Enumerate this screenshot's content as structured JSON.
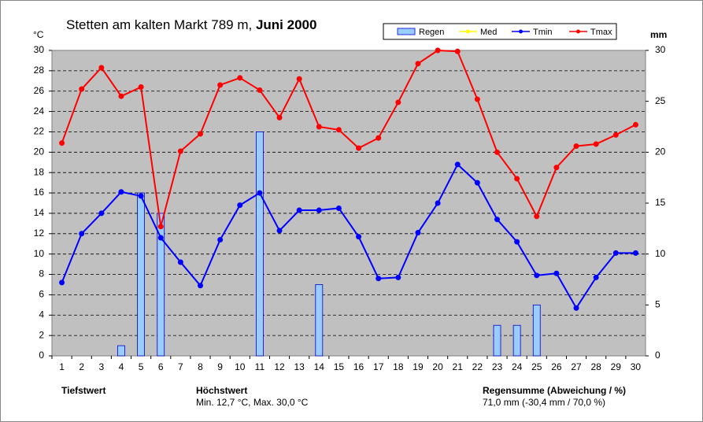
{
  "chart_data": {
    "type": "line",
    "title": "Stetten am kalten Markt  789 m, ",
    "title_emphasis": "Juni 2000",
    "y_label": "°C",
    "y2_label": "mm",
    "categories": [
      "1",
      "2",
      "3",
      "4",
      "5",
      "6",
      "7",
      "8",
      "9",
      "10",
      "11",
      "12",
      "13",
      "14",
      "15",
      "16",
      "17",
      "18",
      "19",
      "20",
      "21",
      "22",
      "23",
      "24",
      "25",
      "26",
      "27",
      "28",
      "29",
      "30"
    ],
    "ylim": [
      0,
      30
    ],
    "yticks": [
      0,
      2,
      4,
      6,
      8,
      10,
      12,
      14,
      16,
      18,
      20,
      22,
      24,
      26,
      28,
      30
    ],
    "y2lim": [
      0,
      30
    ],
    "y2ticks": [
      0,
      5,
      10,
      15,
      20,
      25,
      30
    ],
    "grid": true,
    "series": [
      {
        "name": "Regen",
        "type": "bar",
        "axis": "y2",
        "color": "#99ccff",
        "values": [
          0,
          0,
          0,
          1,
          16,
          14,
          0,
          0,
          0,
          0,
          22,
          0,
          0,
          7,
          0,
          0,
          0,
          0,
          0,
          0,
          0,
          0,
          3,
          3,
          5,
          0,
          0,
          0,
          0,
          0
        ]
      },
      {
        "name": "Med",
        "type": "line",
        "color": "#ffff00",
        "values": [
          null,
          null,
          null,
          null,
          null,
          null,
          null,
          null,
          null,
          null,
          null,
          null,
          null,
          null,
          null,
          null,
          null,
          null,
          null,
          null,
          null,
          null,
          null,
          null,
          null,
          null,
          null,
          null,
          null,
          null
        ]
      },
      {
        "name": "Tmin",
        "type": "line",
        "color": "#0000ff",
        "values": [
          7.2,
          12.0,
          14.0,
          16.1,
          15.7,
          11.6,
          9.2,
          6.9,
          11.4,
          14.8,
          16.0,
          12.3,
          14.3,
          14.3,
          14.5,
          11.7,
          7.6,
          7.7,
          12.1,
          15.0,
          18.8,
          17.0,
          13.4,
          11.2,
          7.9,
          8.1,
          4.7,
          7.7,
          10.1,
          10.1
        ]
      },
      {
        "name": "Tmax",
        "type": "line",
        "color": "#ff0000",
        "values": [
          20.9,
          26.2,
          28.3,
          25.5,
          26.4,
          12.7,
          20.1,
          21.8,
          26.6,
          27.3,
          26.1,
          23.4,
          27.2,
          22.5,
          22.2,
          20.4,
          21.4,
          24.9,
          28.7,
          30.0,
          29.9,
          25.2,
          20.0,
          17.4,
          13.7,
          18.5,
          20.6,
          20.8,
          21.7,
          22.7
        ]
      }
    ],
    "footer": {
      "min_label": "Tiefstwert",
      "max_label": "Höchstwert",
      "max_text": "Min. 12,7 °C, Max. 30,0 °C",
      "rain_label": "Regensumme (Abweichung / %)",
      "rain_text": "71,0 mm (-30,4 mm / 70,0 %)"
    }
  }
}
